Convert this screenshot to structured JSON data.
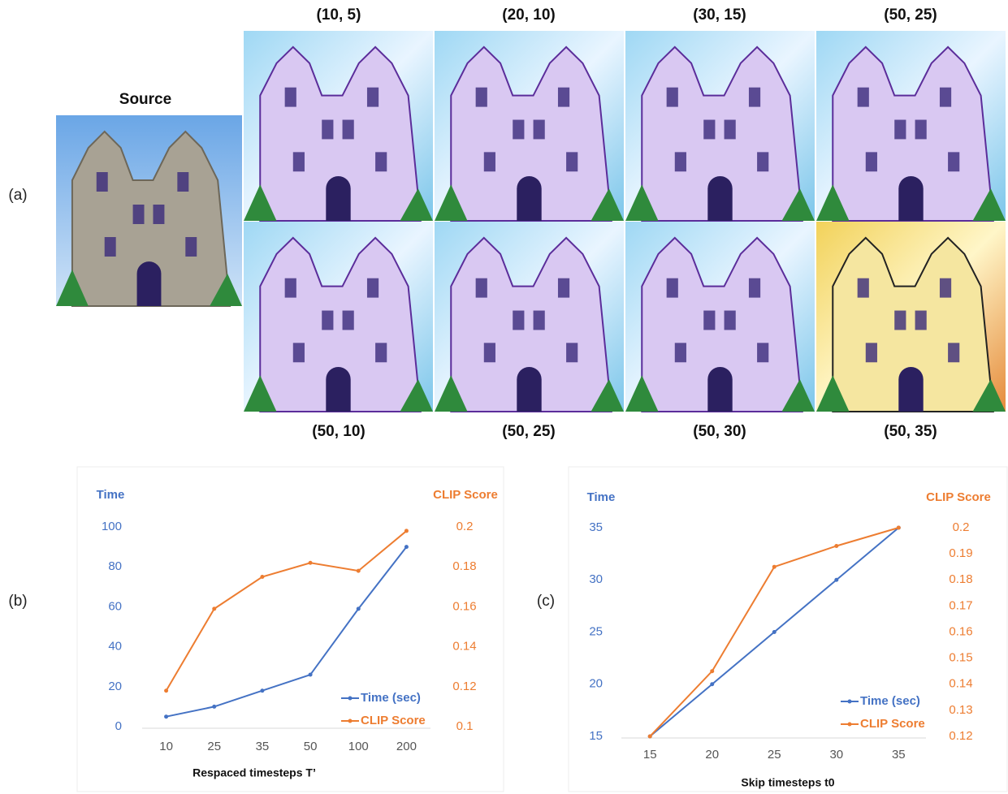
{
  "panels": {
    "a": "(a)",
    "b": "(b)",
    "c": "(c)"
  },
  "source_title": "Source",
  "grid_labels": {
    "top": [
      "(10, 5)",
      "(20, 10)",
      "(30, 15)",
      "(50, 25)"
    ],
    "bottom": [
      "(50, 10)",
      "(50, 25)",
      "(50, 30)",
      "(50, 35)"
    ]
  },
  "chart_data": [
    {
      "type": "line",
      "ylabel": "Time",
      "y2label": "CLIP Score",
      "xlabel": "Respaced timesteps T’",
      "categories": [
        "10",
        "25",
        "35",
        "50",
        "100",
        "200"
      ],
      "ylim": [
        0,
        100
      ],
      "yticks": [
        0,
        20,
        40,
        60,
        80,
        100
      ],
      "y2lim": [
        0.1,
        0.2
      ],
      "y2ticks": [
        0.1,
        0.12,
        0.14,
        0.16,
        0.18,
        0.2
      ],
      "legend": "lower-right",
      "grid": false,
      "series": [
        {
          "name": "Time (sec)",
          "color": "#4472c4",
          "values": [
            5,
            10,
            18,
            26,
            59,
            90
          ]
        },
        {
          "name": "CLIP Score",
          "color": "#ed7d31",
          "axis": "y2",
          "values": [
            0.118,
            0.159,
            0.175,
            0.182,
            0.178,
            0.198
          ]
        }
      ]
    },
    {
      "type": "line",
      "ylabel": "Time",
      "y2label": "CLIP Score",
      "xlabel": "Skip timesteps t0",
      "x": [
        15,
        20,
        25,
        30,
        35
      ],
      "xlim": [
        12.7,
        37.2
      ],
      "xticks": [
        15,
        20,
        25,
        30,
        35
      ],
      "ylim": [
        15,
        35
      ],
      "yticks": [
        15,
        20,
        25,
        30,
        35
      ],
      "y2lim": [
        0.12,
        0.2
      ],
      "y2ticks": [
        0.12,
        0.13,
        0.14,
        0.15,
        0.16,
        0.17,
        0.18,
        0.19,
        0.2
      ],
      "legend": "lower-right",
      "grid": false,
      "series": [
        {
          "name": "Time (sec)",
          "color": "#4472c4",
          "values": [
            15,
            20,
            25,
            30,
            35
          ]
        },
        {
          "name": "CLIP Score",
          "color": "#ed7d31",
          "axis": "y2",
          "values": [
            0.12,
            0.145,
            0.185,
            0.193,
            0.2
          ]
        }
      ]
    }
  ]
}
